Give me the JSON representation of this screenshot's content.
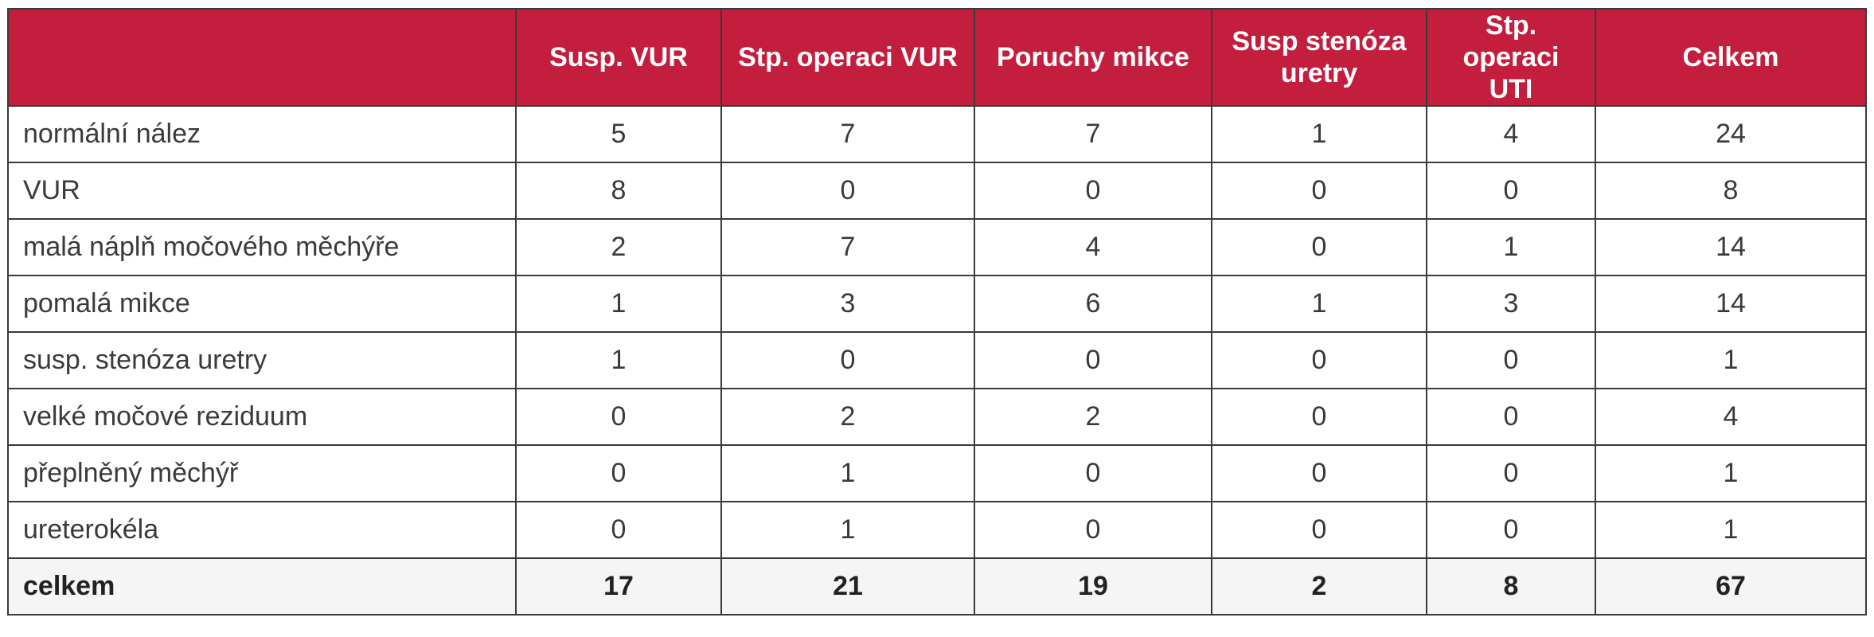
{
  "table": {
    "headers": [
      "",
      "Susp. VUR",
      "Stp. operaci VUR",
      "Poruchy mikce",
      "Susp stenóza uretry",
      "Stp. operaci UTI",
      "Celkem"
    ],
    "rows": [
      [
        "normální nález",
        "5",
        "7",
        "7",
        "1",
        "4",
        "24"
      ],
      [
        "VUR",
        "8",
        "0",
        "0",
        "0",
        "0",
        "8"
      ],
      [
        "malá náplň močového měchýře",
        "2",
        "7",
        "4",
        "0",
        "1",
        "14"
      ],
      [
        "pomalá mikce",
        "1",
        "3",
        "6",
        "1",
        "3",
        "14"
      ],
      [
        "susp. stenóza uretry",
        "1",
        "0",
        "0",
        "0",
        "0",
        "1"
      ],
      [
        "velké močové reziduum",
        "0",
        "2",
        "2",
        "0",
        "0",
        "4"
      ],
      [
        "přeplněný měchýř",
        "0",
        "1",
        "0",
        "0",
        "0",
        "1"
      ],
      [
        "ureterokéla",
        "0",
        "1",
        "0",
        "0",
        "0",
        "1"
      ]
    ],
    "total": [
      "celkem",
      "17",
      "21",
      "19",
      "2",
      "8",
      "67"
    ]
  },
  "colors": {
    "header_background": "#c41e3f",
    "header_text": "#ffffff",
    "cell_text": "#3a3a3a",
    "border": "#3a3a3a"
  }
}
